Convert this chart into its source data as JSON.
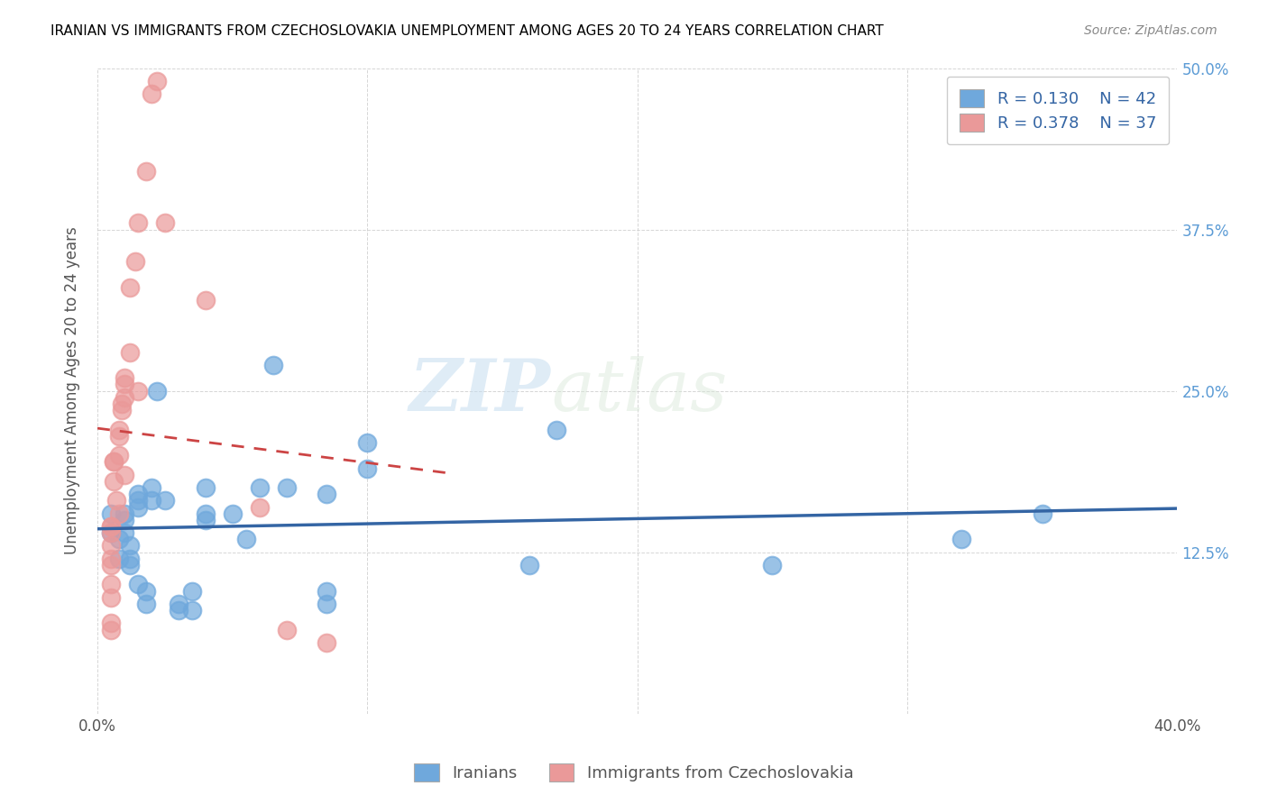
{
  "title": "IRANIAN VS IMMIGRANTS FROM CZECHOSLOVAKIA UNEMPLOYMENT AMONG AGES 20 TO 24 YEARS CORRELATION CHART",
  "source": "Source: ZipAtlas.com",
  "ylabel": "Unemployment Among Ages 20 to 24 years",
  "xlabel_iranians": "Iranians",
  "xlabel_czech": "Immigrants from Czechoslovakia",
  "xlim": [
    0.0,
    0.4
  ],
  "ylim": [
    0.0,
    0.5
  ],
  "xticks": [
    0.0,
    0.1,
    0.2,
    0.3,
    0.4
  ],
  "yticks": [
    0.0,
    0.125,
    0.25,
    0.375,
    0.5
  ],
  "xticklabels": [
    "0.0%",
    "",
    "",
    "",
    "40.0%"
  ],
  "yticklabels_right": [
    "",
    "12.5%",
    "25.0%",
    "37.5%",
    "50.0%"
  ],
  "legend_r1": "R = 0.130",
  "legend_n1": "N = 42",
  "legend_r2": "R = 0.378",
  "legend_n2": "N = 37",
  "blue_color": "#6fa8dc",
  "pink_color": "#ea9999",
  "trend_blue": "#3465a4",
  "trend_pink": "#cc4444",
  "watermark_zip": "ZIP",
  "watermark_atlas": "atlas",
  "iranians_x": [
    0.005,
    0.005,
    0.008,
    0.008,
    0.01,
    0.01,
    0.01,
    0.012,
    0.012,
    0.012,
    0.015,
    0.015,
    0.015,
    0.015,
    0.018,
    0.018,
    0.02,
    0.02,
    0.022,
    0.025,
    0.03,
    0.03,
    0.035,
    0.035,
    0.04,
    0.04,
    0.04,
    0.05,
    0.055,
    0.06,
    0.065,
    0.07,
    0.085,
    0.085,
    0.085,
    0.1,
    0.1,
    0.16,
    0.17,
    0.25,
    0.32,
    0.35
  ],
  "iranians_y": [
    0.14,
    0.155,
    0.12,
    0.135,
    0.155,
    0.15,
    0.14,
    0.13,
    0.12,
    0.115,
    0.17,
    0.165,
    0.16,
    0.1,
    0.095,
    0.085,
    0.175,
    0.165,
    0.25,
    0.165,
    0.085,
    0.08,
    0.095,
    0.08,
    0.175,
    0.155,
    0.15,
    0.155,
    0.135,
    0.175,
    0.27,
    0.175,
    0.095,
    0.085,
    0.17,
    0.21,
    0.19,
    0.115,
    0.22,
    0.115,
    0.135,
    0.155
  ],
  "czech_x": [
    0.005,
    0.005,
    0.005,
    0.005,
    0.005,
    0.005,
    0.005,
    0.005,
    0.005,
    0.005,
    0.006,
    0.006,
    0.006,
    0.007,
    0.008,
    0.008,
    0.008,
    0.008,
    0.009,
    0.009,
    0.01,
    0.01,
    0.01,
    0.01,
    0.012,
    0.012,
    0.014,
    0.015,
    0.015,
    0.018,
    0.02,
    0.022,
    0.025,
    0.04,
    0.06,
    0.07,
    0.085
  ],
  "czech_y": [
    0.145,
    0.145,
    0.14,
    0.13,
    0.12,
    0.115,
    0.1,
    0.09,
    0.07,
    0.065,
    0.195,
    0.195,
    0.18,
    0.165,
    0.22,
    0.215,
    0.2,
    0.155,
    0.24,
    0.235,
    0.26,
    0.255,
    0.245,
    0.185,
    0.33,
    0.28,
    0.35,
    0.38,
    0.25,
    0.42,
    0.48,
    0.49,
    0.38,
    0.32,
    0.16,
    0.065,
    0.055
  ]
}
